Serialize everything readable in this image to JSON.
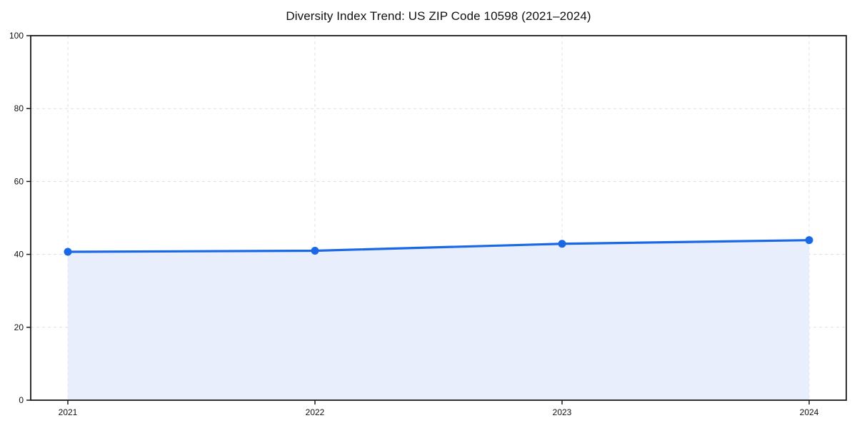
{
  "chart_data": {
    "type": "area",
    "title": "Diversity Index Trend: US ZIP Code 10598 (2021–2024)",
    "x": [
      "2021",
      "2022",
      "2023",
      "2024"
    ],
    "series": [
      {
        "name": "Diversity Index",
        "values": [
          40.7,
          41.0,
          42.9,
          43.9
        ]
      }
    ],
    "xlabel": "",
    "ylabel": "",
    "ylim": [
      0,
      100
    ],
    "yticks": [
      0,
      20,
      40,
      60,
      80,
      100
    ],
    "grid": "dashed-both-axes",
    "legend": "none",
    "marker": "circle",
    "colors": {
      "line": "#1a68e6",
      "marker": "#1a68e6",
      "area_fill": "#e8eefb",
      "gridline": "#dcdfe6",
      "axis": "#1a1a1a",
      "tick_text": "#111111",
      "background": "#ffffff"
    }
  }
}
